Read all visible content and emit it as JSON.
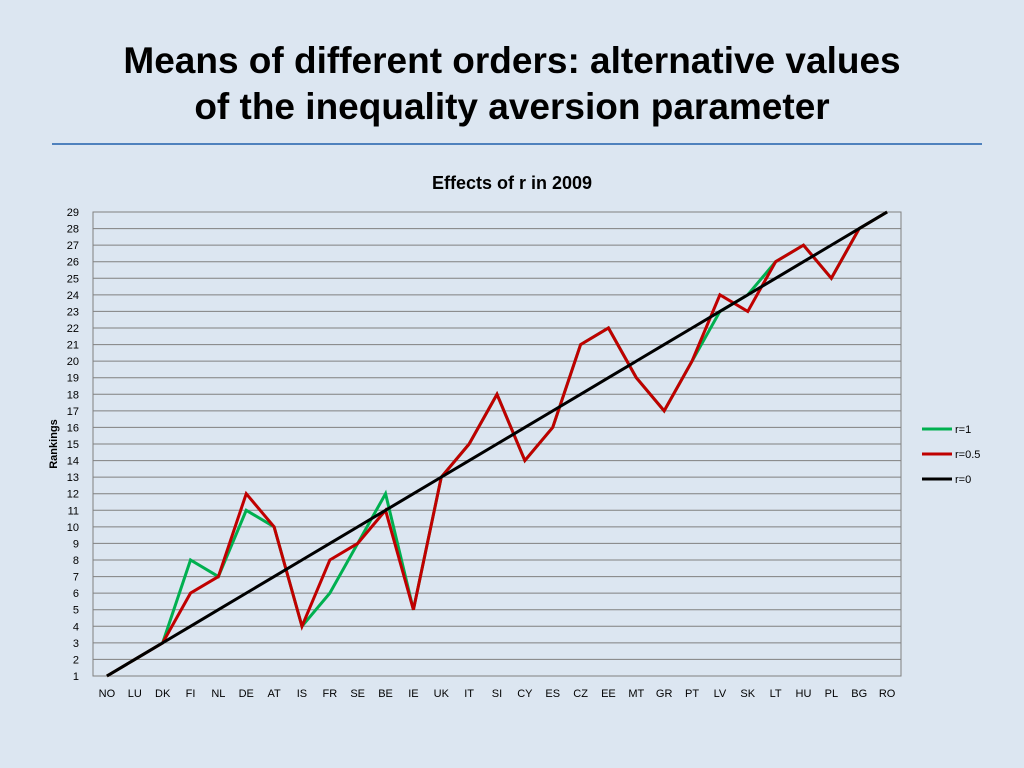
{
  "slide": {
    "title_line1": "Means of different orders: alternative values",
    "title_line2": "of the inequality aversion parameter"
  },
  "chart_data": {
    "type": "line",
    "title": "Effects of r in 2009",
    "xlabel": "",
    "ylabel": "Rankings",
    "ylim": [
      1,
      29
    ],
    "grid": true,
    "legend_position": "right",
    "categories": [
      "NO",
      "LU",
      "DK",
      "FI",
      "NL",
      "DE",
      "AT",
      "IS",
      "FR",
      "SE",
      "BE",
      "IE",
      "UK",
      "IT",
      "SI",
      "CY",
      "ES",
      "CZ",
      "EE",
      "MT",
      "GR",
      "PT",
      "LV",
      "SK",
      "LT",
      "HU",
      "PL",
      "BG",
      "RO"
    ],
    "series": [
      {
        "name": "r=1",
        "color": "#00b050",
        "values": [
          1,
          2,
          3,
          8,
          7,
          11,
          10,
          4,
          6,
          9,
          12,
          5,
          13,
          15,
          18,
          14,
          16,
          21,
          22,
          19,
          17,
          20,
          23,
          24,
          26,
          27,
          25,
          28,
          29
        ]
      },
      {
        "name": "r=0.5",
        "color": "#c00000",
        "values": [
          1,
          2,
          3,
          6,
          7,
          12,
          10,
          4,
          8,
          9,
          11,
          5,
          13,
          15,
          18,
          14,
          16,
          21,
          22,
          19,
          17,
          20,
          24,
          23,
          26,
          27,
          25,
          28,
          29
        ]
      },
      {
        "name": "r=0",
        "color": "#000000",
        "values": [
          1,
          2,
          3,
          4,
          5,
          6,
          7,
          8,
          9,
          10,
          11,
          12,
          13,
          14,
          15,
          16,
          17,
          18,
          19,
          20,
          21,
          22,
          23,
          24,
          25,
          26,
          27,
          28,
          29
        ]
      }
    ]
  }
}
